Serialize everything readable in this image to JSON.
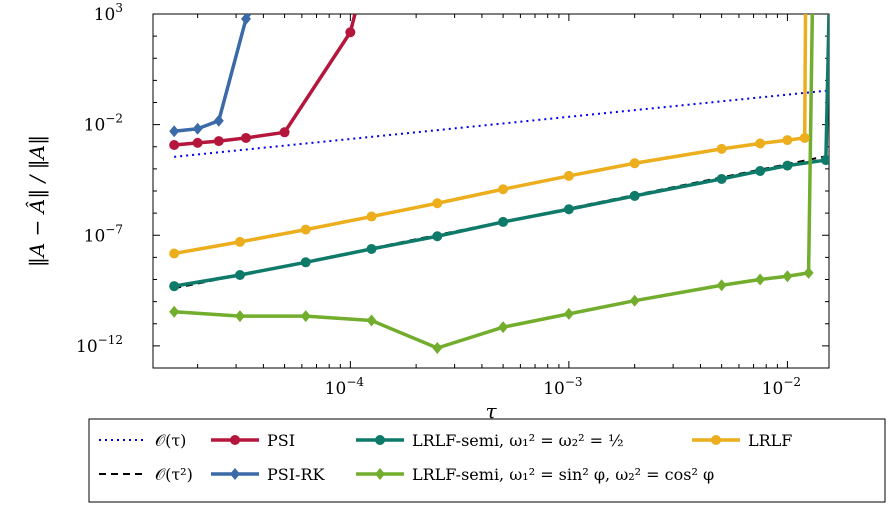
{
  "chart_data": {
    "type": "line",
    "xscale": "log",
    "yscale": "log",
    "xlabel": "τ",
    "ylabel": "‖A − Â‖ / ‖A‖",
    "xlim": [
      1.25e-05,
      0.0155
    ],
    "ylim": [
      1e-13,
      1000
    ],
    "xticks": [
      {
        "value": 0.0001,
        "base": "10",
        "exp": "−4"
      },
      {
        "value": 0.001,
        "base": "10",
        "exp": "−3"
      },
      {
        "value": 0.01,
        "base": "10",
        "exp": "−2"
      }
    ],
    "yticks": [
      {
        "value": 1e-12,
        "base": "10",
        "exp": "−12"
      },
      {
        "value": 1e-07,
        "base": "10",
        "exp": "−7"
      },
      {
        "value": 0.01,
        "base": "10",
        "exp": "−2"
      },
      {
        "value": 1000,
        "base": "10",
        "exp": "3"
      }
    ],
    "legend_position": "bottom",
    "series": [
      {
        "name": "𝒪(τ)",
        "color": "#0000ee",
        "style": "dotted",
        "marker": "none",
        "x": [
          1.5625e-05,
          0.015
        ],
        "y": [
          0.00035,
          0.34
        ]
      },
      {
        "name": "𝒪(τ²)",
        "color": "#000000",
        "style": "dashed",
        "marker": "none",
        "x": [
          1.5625e-05,
          0.015
        ],
        "y": [
          4e-10,
          0.00037
        ]
      },
      {
        "name": "PSI",
        "color": "#b5163b",
        "style": "solid",
        "marker": "circle",
        "x": [
          1.5625e-05,
          2e-05,
          2.5e-05,
          3.33e-05,
          5e-05,
          0.0001,
          0.000105
        ],
        "y": [
          0.0012,
          0.0015,
          0.0018,
          0.0025,
          0.0045,
          150,
          1000
        ]
      },
      {
        "name": "PSI-RK",
        "color": "#3b6aa8",
        "style": "solid",
        "marker": "diamond",
        "x": [
          1.5625e-05,
          2e-05,
          2.5e-05,
          3.33e-05,
          3.45e-05
        ],
        "y": [
          0.005,
          0.0065,
          0.015,
          600,
          1000
        ]
      },
      {
        "name": "LRLF-semi, ω₁² = ω₂² = ½",
        "color": "#0e7a6a",
        "style": "solid",
        "marker": "circle",
        "x": [
          1.5625e-05,
          3.125e-05,
          6.25e-05,
          0.000125,
          0.00025,
          0.0005,
          0.001,
          0.002,
          0.005,
          0.0075,
          0.01,
          0.015,
          0.0155
        ],
        "y": [
          5e-10,
          1.6e-09,
          6e-09,
          2.4e-08,
          9e-08,
          4e-07,
          1.5e-06,
          6e-06,
          3.5e-05,
          8e-05,
          0.00014,
          0.00025,
          1000
        ]
      },
      {
        "name": "LRLF-semi, ω₁² = sin² φ, ω₂² = cos² φ",
        "color": "#72ad2e",
        "style": "solid",
        "marker": "diamond",
        "x": [
          1.5625e-05,
          3.125e-05,
          6.25e-05,
          0.000125,
          0.00025,
          0.0005,
          0.001,
          0.002,
          0.005,
          0.0075,
          0.01,
          0.0125,
          0.013
        ],
        "y": [
          3.5e-11,
          2.2e-11,
          2.2e-11,
          1.4e-11,
          8e-13,
          7e-12,
          2.8e-11,
          1.1e-10,
          5.5e-10,
          1e-09,
          1.4e-09,
          2e-09,
          1000
        ]
      },
      {
        "name": "LRLF",
        "color": "#ecae1c",
        "style": "solid",
        "marker": "circle",
        "x": [
          1.5625e-05,
          3.125e-05,
          6.25e-05,
          0.000125,
          0.00025,
          0.0005,
          0.001,
          0.002,
          0.005,
          0.0075,
          0.01,
          0.012,
          0.0121
        ],
        "y": [
          1.5e-08,
          5e-08,
          1.8e-07,
          7e-07,
          2.8e-06,
          1.2e-05,
          4.8e-05,
          0.00018,
          0.0008,
          0.0014,
          0.002,
          0.0025,
          1000
        ]
      }
    ]
  },
  "legend": {
    "order": [
      0,
      2,
      4,
      6,
      1,
      3,
      5
    ]
  }
}
